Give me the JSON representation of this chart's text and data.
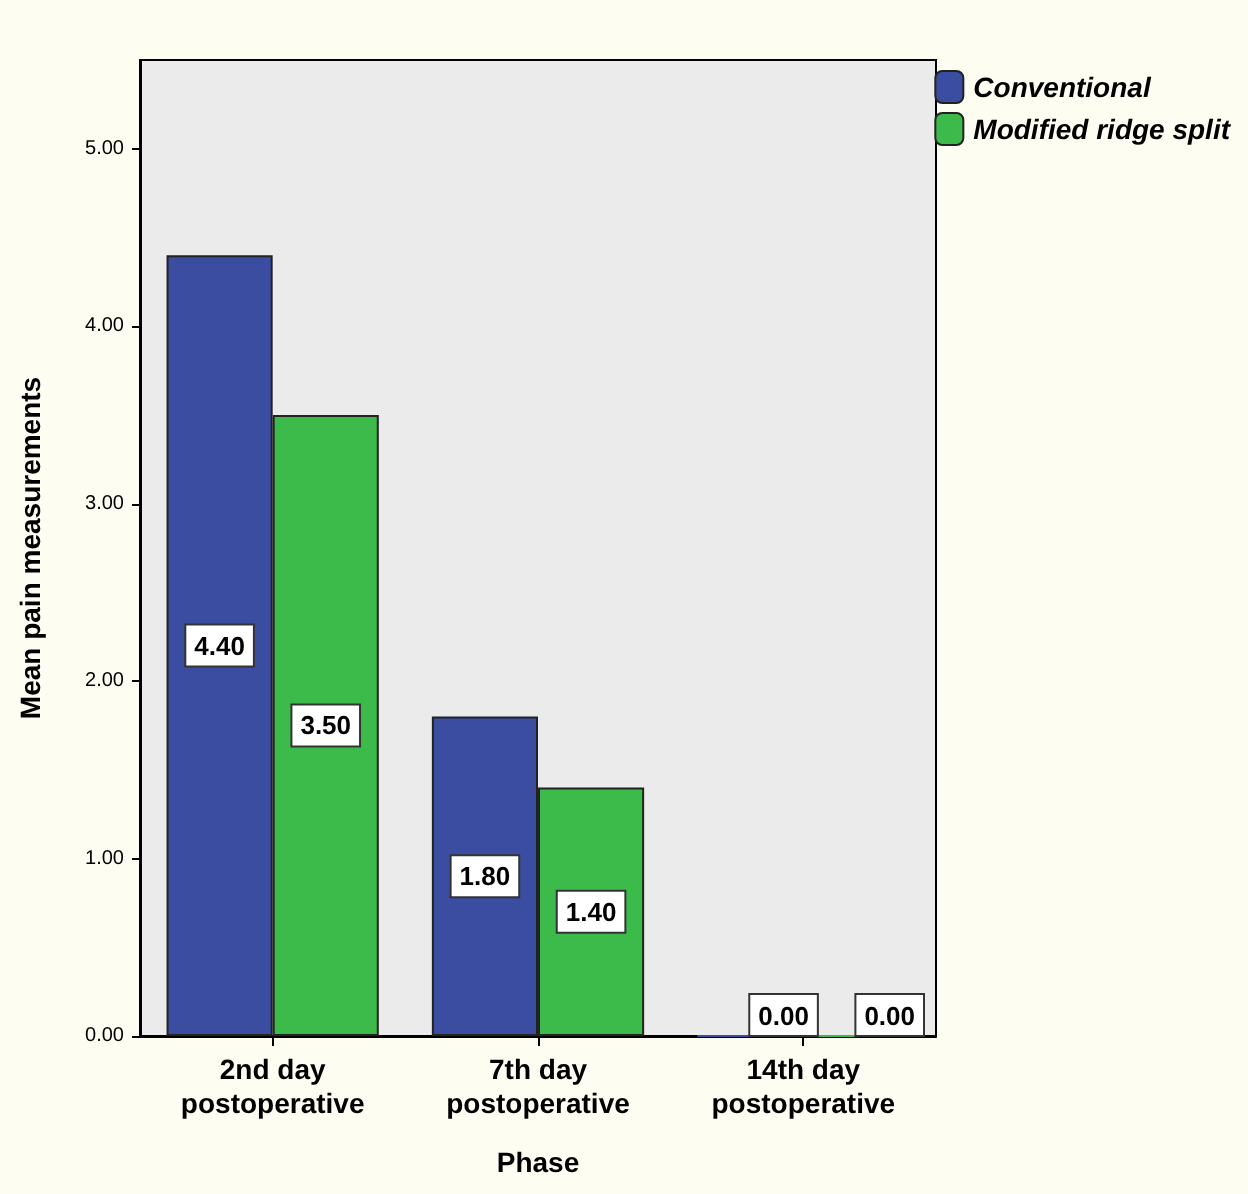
{
  "chart_data": {
    "type": "bar",
    "xlabel": "Phase",
    "ylabel": "Mean pain measurements",
    "categories": [
      "2nd day\npostoperative",
      "7th day\npostoperative",
      "14th day\npostoperative"
    ],
    "series": [
      {
        "name": "Conventional",
        "color": "#3a4da0",
        "values": [
          4.4,
          1.8,
          0
        ],
        "value_labels": [
          "4.40",
          "1.80",
          "0.00"
        ]
      },
      {
        "name": "Modified ridge split",
        "color": "#3dbb4a",
        "values": [
          3.5,
          1.4,
          0
        ],
        "value_labels": [
          "3.50",
          "1.40",
          "0.00"
        ]
      }
    ],
    "ylim": [
      0,
      5.5
    ],
    "yticks": [
      {
        "value": 0,
        "label": "0.00"
      },
      {
        "value": 1,
        "label": "1.00"
      },
      {
        "value": 2,
        "label": "2.00"
      },
      {
        "value": 3,
        "label": "3.00"
      },
      {
        "value": 4,
        "label": "4.00"
      },
      {
        "value": 5,
        "label": "5.00"
      }
    ],
    "grid": false,
    "legend": "top right"
  }
}
